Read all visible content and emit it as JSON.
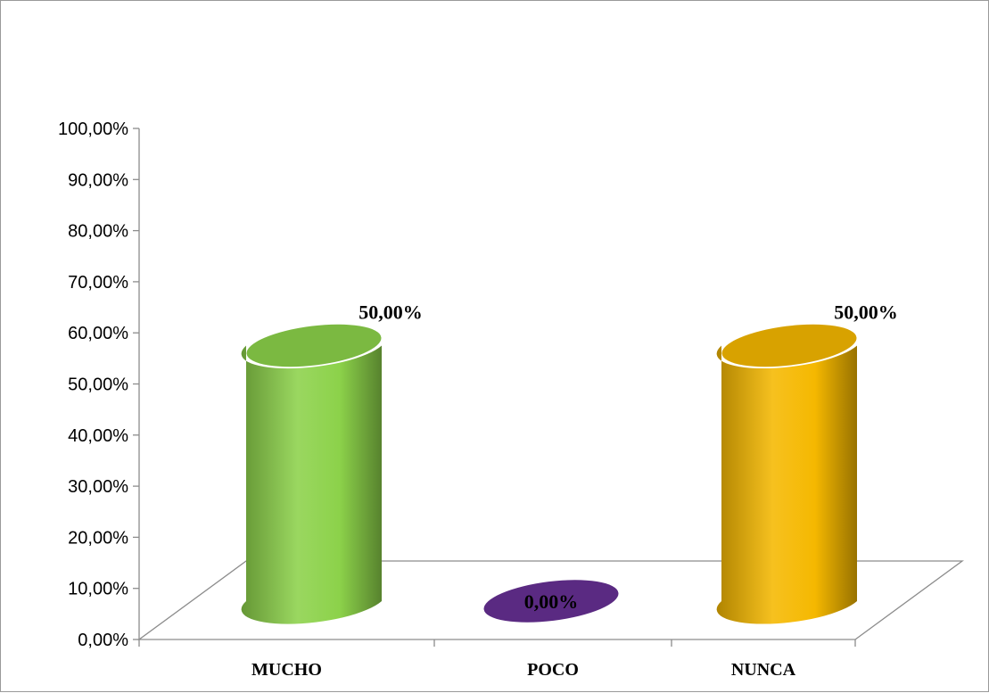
{
  "chart_data": {
    "type": "bar",
    "style": "3d-cylinder",
    "categories": [
      "MUCHO",
      "POCO",
      "NUNCA"
    ],
    "values": [
      50,
      0,
      50
    ],
    "data_labels": [
      "50,00%",
      "0,00%",
      "50,00%"
    ],
    "yticks": [
      "0,00%",
      "10,00%",
      "20,00%",
      "30,00%",
      "40,00%",
      "50,00%",
      "60,00%",
      "70,00%",
      "80,00%",
      "90,00%",
      "100,00%"
    ],
    "ylim": [
      0,
      100
    ],
    "title": "",
    "xlabel": "",
    "ylabel": "",
    "grid": false,
    "legend": "none",
    "colors": {
      "MUCHO": "#8cd24a",
      "POCO": "#5a2a82",
      "NUNCA": "#f5b800"
    }
  }
}
